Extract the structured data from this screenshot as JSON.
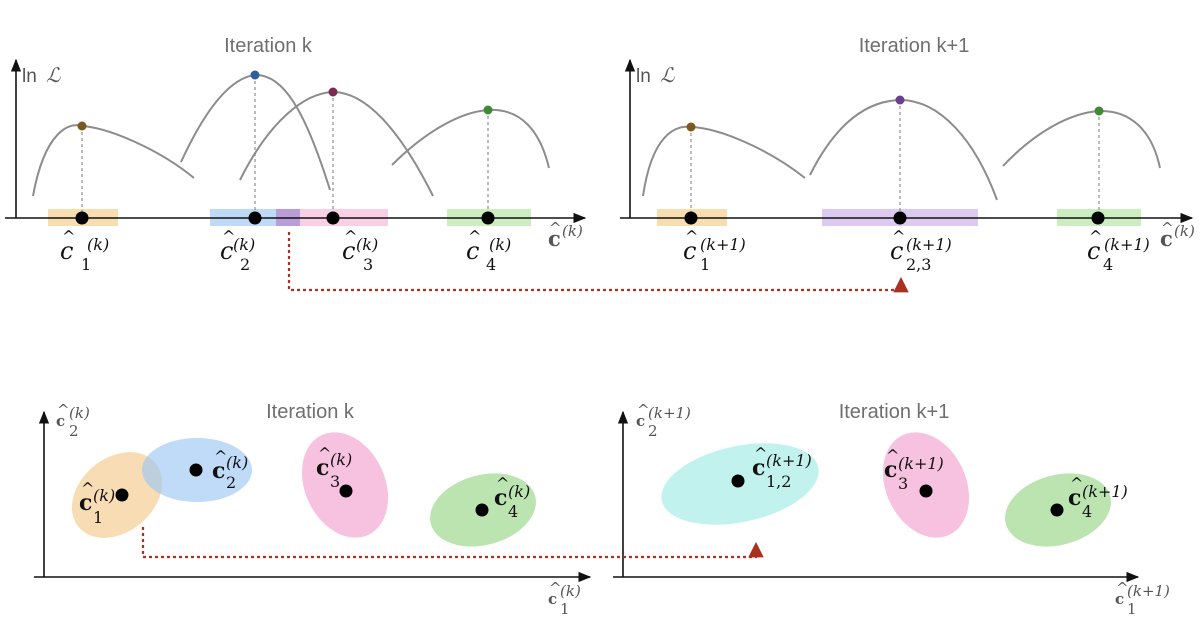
{
  "top_left": {
    "title": "Iteration k",
    "ylabel_prefix": "ln",
    "ylabel_script": "ℒ",
    "points": [
      {
        "base": "c",
        "sub": "1",
        "sup": "(k)",
        "color": "#7a5a1e",
        "band": "#f7d9a8"
      },
      {
        "base": "c",
        "sub": "2",
        "sup": "(k)",
        "color": "#2f5f9e",
        "band": "#b8d6f5"
      },
      {
        "base": "c",
        "sub": "3",
        "sup": "(k)",
        "color": "#7c2a55",
        "band": "#f6bfdc"
      },
      {
        "base": "c",
        "sub": "4",
        "sup": "(k)",
        "color": "#3e8a35",
        "band": "#c6ebb9"
      }
    ],
    "xlabel_base": "c",
    "xlabel_sup": "(k)"
  },
  "top_right": {
    "title": "Iteration k+1",
    "ylabel_prefix": "ln",
    "ylabel_script": "ℒ",
    "points": [
      {
        "base": "c",
        "sub": "1",
        "sup": "(k+1)",
        "color": "#7a5a1e",
        "band": "#f7d9a8"
      },
      {
        "base": "c",
        "sub": "2,3",
        "sup": "(k+1)",
        "color": "#6a3f8f",
        "band": "#d8c4ef"
      },
      {
        "base": "c",
        "sub": "4",
        "sup": "(k+1)",
        "color": "#3e8a35",
        "band": "#c6ebb9"
      }
    ],
    "xlabel_base": "c",
    "xlabel_sup": "(k)"
  },
  "bottom_left": {
    "title": "Iteration k",
    "ylabel_base": "c",
    "ylabel_sub": "2",
    "ylabel_sup": "(k)",
    "xlabel_base": "c",
    "xlabel_sub": "1",
    "xlabel_sup": "(k)",
    "clusters": [
      {
        "base": "c",
        "sub": "1",
        "sup": "(k)",
        "color": "#f4c98a"
      },
      {
        "base": "c",
        "sub": "2",
        "sup": "(k)",
        "color": "#9cc7f2"
      },
      {
        "base": "c",
        "sub": "3",
        "sup": "(k)",
        "color": "#f2a8d2"
      },
      {
        "base": "c",
        "sub": "4",
        "sup": "(k)",
        "color": "#9fd98f"
      }
    ]
  },
  "bottom_right": {
    "title": "Iteration k+1",
    "ylabel_base": "c",
    "ylabel_sub": "2",
    "ylabel_sup": "(k+1)",
    "xlabel_base": "c",
    "xlabel_sub": "1",
    "xlabel_sup": "(k+1)",
    "clusters": [
      {
        "base": "c",
        "sub": "1,2",
        "sup": "(k+1)",
        "color": "#a8ece6"
      },
      {
        "base": "c",
        "sub": "3",
        "sup": "(k+1)",
        "color": "#f2a8d2"
      },
      {
        "base": "c",
        "sub": "4",
        "sup": "(k+1)",
        "color": "#9fd98f"
      }
    ]
  },
  "colors": {
    "arrow": "#a8321f",
    "axis": "#111111",
    "curve": "#8c8c8c"
  }
}
